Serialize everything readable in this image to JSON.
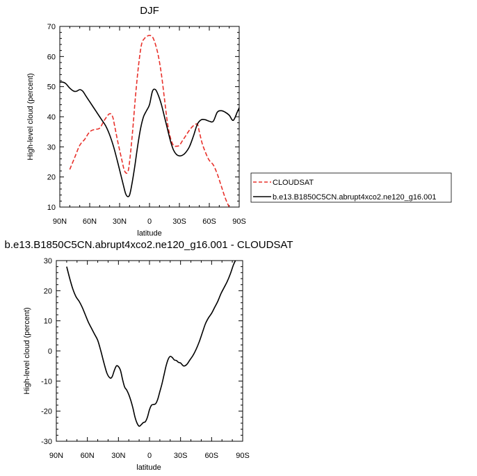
{
  "colors": {
    "cloudsat": "#e8302a",
    "model": "#000000",
    "axis": "#000000"
  },
  "chart_data": [
    {
      "type": "line",
      "title": "DJF",
      "xlabel": "latitude",
      "ylabel": "High-level cloud (percent)",
      "xlim": [
        -90,
        90
      ],
      "ylim": [
        10,
        70
      ],
      "x_ticks": [
        -90,
        -60,
        -30,
        0,
        30,
        60,
        90
      ],
      "x_tick_labels": [
        "90N",
        "60N",
        "30N",
        "0",
        "30S",
        "60S",
        "90S"
      ],
      "y_ticks": [
        10,
        20,
        30,
        40,
        50,
        60,
        70
      ],
      "y_tick_labels": [
        "10",
        "20",
        "30",
        "40",
        "50",
        "60",
        "70"
      ],
      "legend_position": "right",
      "series": [
        {
          "name": "CLOUDSAT",
          "style": "dashed",
          "color": "#e8302a",
          "x": [
            -80,
            -75,
            -70,
            -65,
            -60,
            -55,
            -50,
            -45,
            -40,
            -37,
            -35,
            -32,
            -28,
            -25,
            -22,
            -20,
            -17,
            -14,
            -11,
            -8,
            -5,
            -2,
            0,
            3,
            6,
            9,
            12,
            15,
            18,
            21,
            24,
            27,
            30,
            33,
            36,
            40,
            44,
            48,
            50,
            53,
            57,
            60,
            64,
            68,
            72,
            76,
            80,
            82
          ],
          "y": [
            22.5,
            26.5,
            30.5,
            32.5,
            35,
            35.8,
            36.2,
            39,
            41,
            40,
            37,
            32,
            26,
            22,
            21.5,
            25,
            35,
            47,
            57,
            64,
            66,
            66.8,
            67,
            66.5,
            64,
            60,
            54,
            46,
            38,
            33,
            30.5,
            30.2,
            30.5,
            32,
            33.5,
            35.5,
            37,
            37.5,
            35,
            31,
            27.5,
            25.5,
            24,
            21,
            17,
            13,
            10,
            9
          ]
        },
        {
          "name": "b.e13.B1850C5CN.abrupt4xco2.ne120_g16.001",
          "style": "solid",
          "color": "#000000",
          "x": [
            -90,
            -87,
            -84,
            -80,
            -76,
            -73,
            -70,
            -67,
            -64,
            -60,
            -56,
            -52,
            -48,
            -44,
            -40,
            -36,
            -32,
            -29,
            -26,
            -24,
            -22,
            -20,
            -18,
            -15,
            -12,
            -9,
            -6,
            -3,
            0,
            3,
            6,
            9,
            12,
            15,
            18,
            21,
            24,
            27,
            30,
            33,
            36,
            40,
            44,
            48,
            52,
            56,
            60,
            64,
            68,
            72,
            76,
            80,
            84,
            88,
            90
          ],
          "y": [
            51.5,
            51.5,
            51,
            49.5,
            48.5,
            48.5,
            49,
            48.5,
            47,
            45,
            43,
            41,
            39,
            37,
            34,
            30,
            25,
            21,
            17,
            14.5,
            13.5,
            14,
            17,
            23,
            30,
            36,
            40,
            42,
            44,
            48.5,
            49,
            47,
            44,
            40,
            36,
            32,
            29,
            27.5,
            27,
            27.2,
            28,
            30,
            33.5,
            37.5,
            39,
            39,
            38.5,
            38.5,
            41.5,
            42,
            41.5,
            40.5,
            38.8,
            41.5,
            43
          ]
        }
      ]
    },
    {
      "type": "line",
      "title": "b.e13.B1850C5CN.abrupt4xco2.ne120_g16.001 - CLOUDSAT",
      "xlabel": "latitude",
      "ylabel": "High-level cloud (percent)",
      "xlim": [
        -90,
        90
      ],
      "ylim": [
        -30,
        30
      ],
      "x_ticks": [
        -90,
        -60,
        -30,
        0,
        30,
        60,
        90
      ],
      "x_tick_labels": [
        "90N",
        "60N",
        "30N",
        "0",
        "30S",
        "60S",
        "90S"
      ],
      "y_ticks": [
        -30,
        -20,
        -10,
        0,
        10,
        20,
        30
      ],
      "y_tick_labels": [
        "-30",
        "-20",
        "-10",
        "0",
        "10",
        "20",
        "30"
      ],
      "series": [
        {
          "style": "solid",
          "color": "#000000",
          "x": [
            -80,
            -77,
            -74,
            -71,
            -68,
            -65,
            -62,
            -59,
            -56,
            -53,
            -50,
            -47,
            -44,
            -41,
            -38,
            -36,
            -34,
            -32,
            -30,
            -28,
            -26,
            -24,
            -22,
            -20,
            -18,
            -16,
            -14,
            -12,
            -10,
            -8,
            -6,
            -4,
            -2,
            0,
            2,
            4,
            6,
            8,
            10,
            12,
            14,
            16,
            18,
            20,
            22,
            24,
            26,
            28,
            30,
            33,
            36,
            39,
            42,
            45,
            48,
            51,
            54,
            57,
            60,
            63,
            66,
            69,
            72,
            75,
            78,
            81,
            83
          ],
          "y": [
            28,
            24,
            20.5,
            18,
            16.5,
            14.5,
            12,
            9.5,
            7.5,
            5.5,
            3.5,
            0,
            -4,
            -7.5,
            -9,
            -8.5,
            -6.5,
            -5,
            -5.2,
            -6.5,
            -9.5,
            -12,
            -13,
            -14.5,
            -16.5,
            -19,
            -22,
            -24,
            -25,
            -24.5,
            -23.8,
            -23.5,
            -22,
            -19.5,
            -18,
            -17.8,
            -17.5,
            -16,
            -13.5,
            -11,
            -8,
            -5,
            -2.8,
            -1.8,
            -2.2,
            -3,
            -3.2,
            -3.8,
            -4,
            -5,
            -4.5,
            -3,
            -1.5,
            0.5,
            3,
            6,
            9,
            11,
            12.5,
            14.5,
            16.5,
            19,
            21,
            23,
            25.5,
            28.5,
            30
          ]
        }
      ]
    }
  ]
}
